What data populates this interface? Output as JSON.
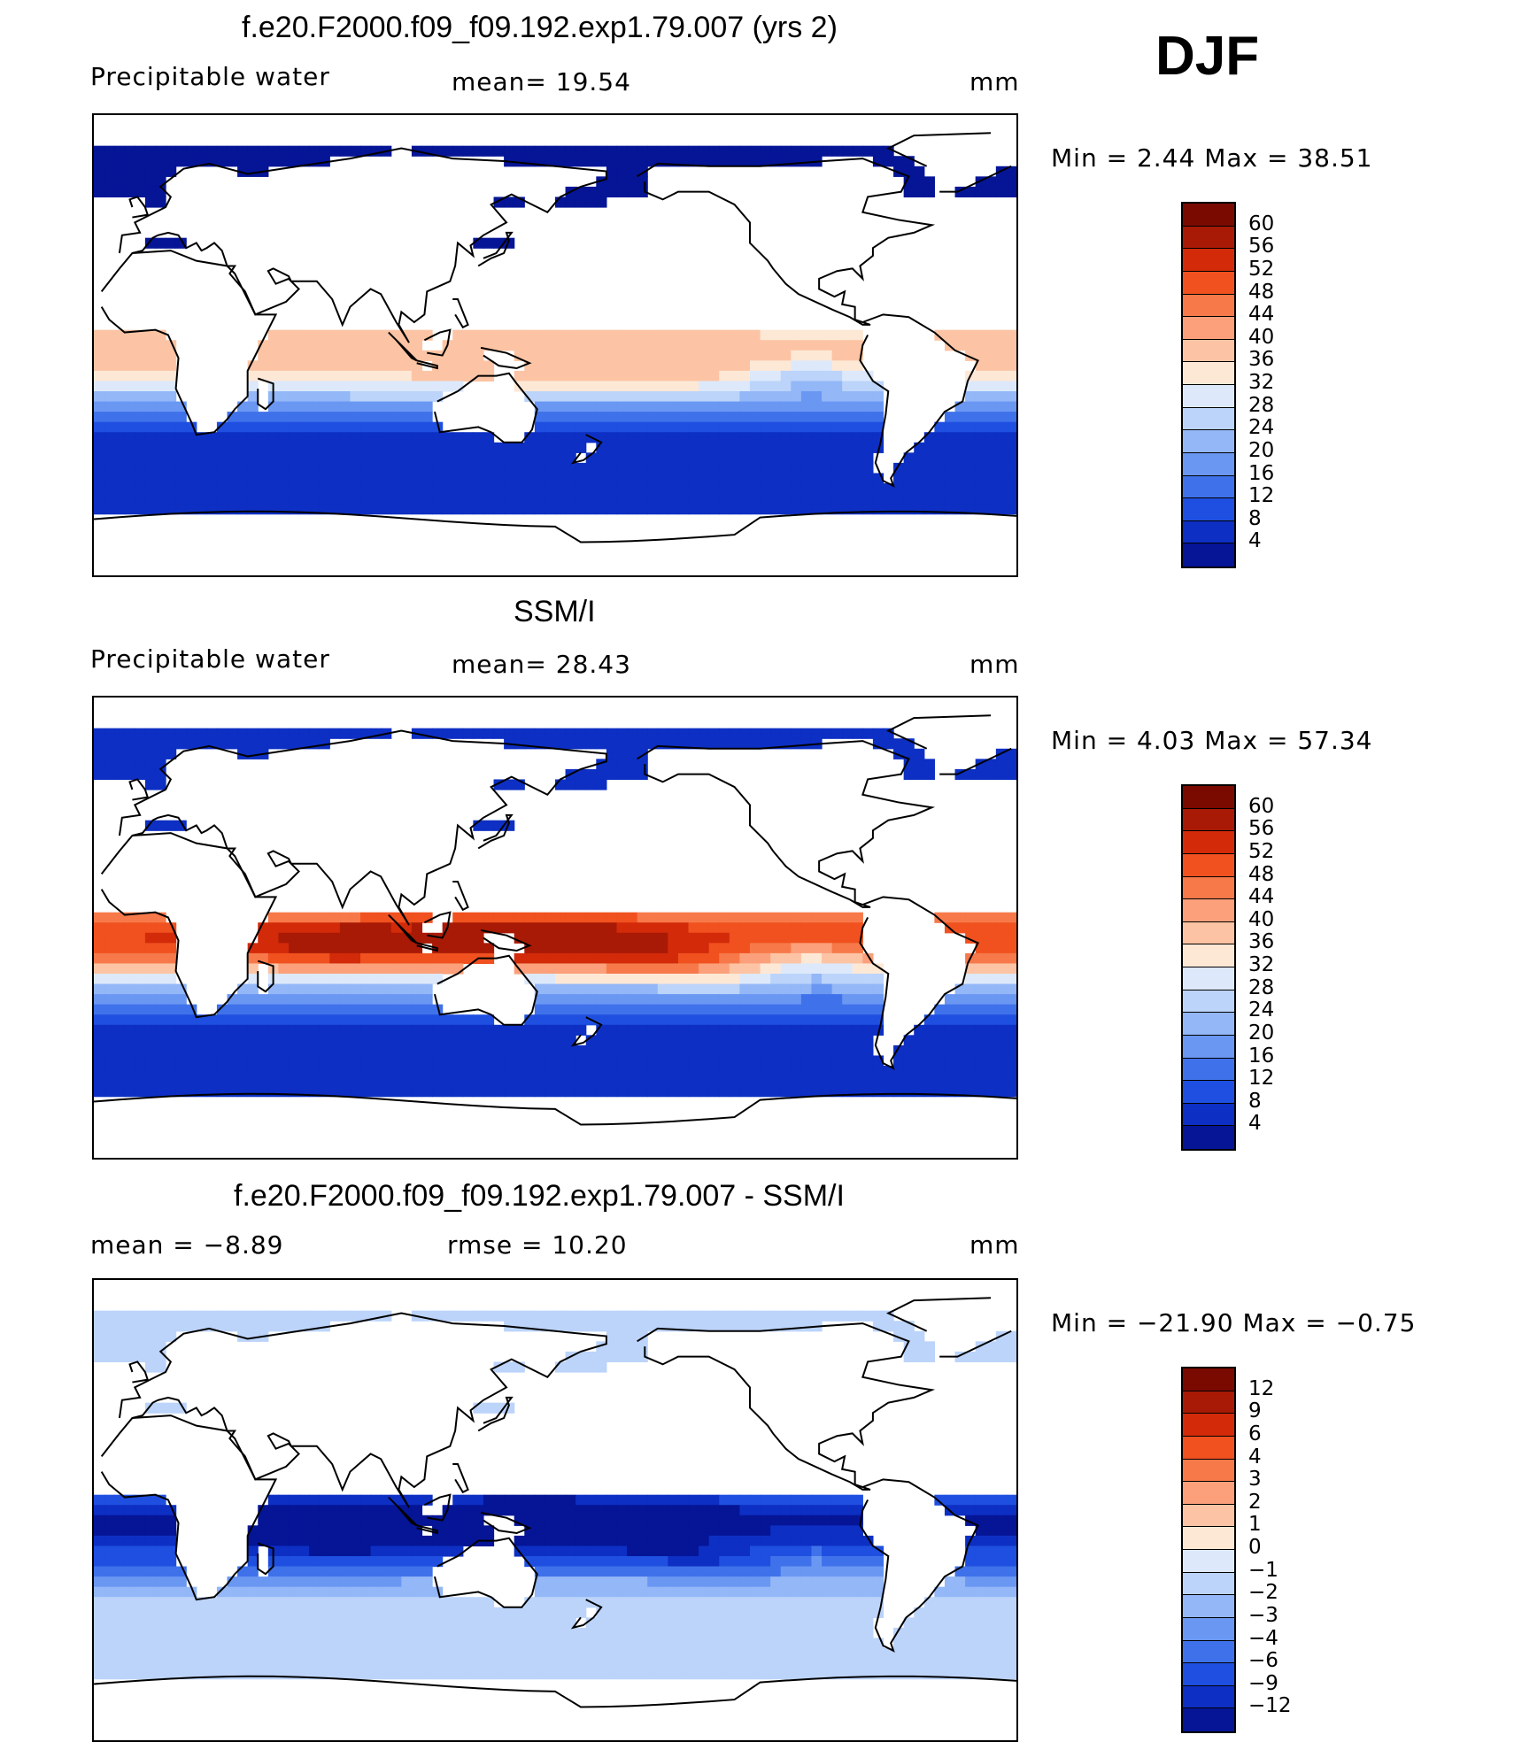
{
  "header": {
    "season": "DJF"
  },
  "panels": [
    {
      "id": "model",
      "title": "f.e20.F2000.f09_f09.192.exp1.79.007 (yrs 2)",
      "left_label": "Precipitable water",
      "center_label": "mean=   19.54",
      "units": "mm",
      "minmax": "Min =    2.44  Max =   38.51",
      "levels": [
        "60",
        "56",
        "52",
        "48",
        "44",
        "40",
        "36",
        "32",
        "28",
        "24",
        "20",
        "16",
        "12",
        "8",
        "4"
      ],
      "field": {
        "type": "model"
      }
    },
    {
      "id": "obs",
      "title": "SSM/I",
      "left_label": "Precipitable water",
      "center_label": "mean=   28.43",
      "units": "mm",
      "minmax": "Min =    4.03  Max =   57.34",
      "levels": [
        "60",
        "56",
        "52",
        "48",
        "44",
        "40",
        "36",
        "32",
        "28",
        "24",
        "20",
        "16",
        "12",
        "8",
        "4"
      ],
      "field": {
        "type": "obs"
      }
    },
    {
      "id": "diff",
      "title": "f.e20.F2000.f09_f09.192.exp1.79.007 - SSM/I",
      "left_label": "mean =   −8.89",
      "center_label": "rmse =    10.20",
      "units": "mm",
      "minmax": "Min = −21.90  Max =   −0.75",
      "levels": [
        "12",
        "9",
        "6",
        "4",
        "3",
        "2",
        "1",
        "0",
        "−1",
        "−2",
        "−3",
        "−4",
        "−6",
        "−9",
        "−12"
      ],
      "field": {
        "type": "diff"
      }
    }
  ],
  "colors": {
    "full_scale": [
      "#7a0a00",
      "#a81a05",
      "#d32a0a",
      "#f0511f",
      "#f7794a",
      "#fba07b",
      "#fcc4a4",
      "#fde8d6",
      "#dde9fb",
      "#bcd4fa",
      "#93b7f7",
      "#6a97f2",
      "#3f72ea",
      "#1f4fe0",
      "#0d2fc3",
      "#051596"
    ],
    "diff_scale": [
      "#7a0a00",
      "#a81a05",
      "#d32a0a",
      "#f0511f",
      "#f7794a",
      "#fba07b",
      "#fcc4a4",
      "#fde8d6",
      "#dde9fb",
      "#bcd4fa",
      "#93b7f7",
      "#6a97f2",
      "#3f72ea",
      "#1f4fe0",
      "#0d2fc3",
      "#051596"
    ],
    "land": "#ffffff",
    "coast": "#000000"
  }
}
